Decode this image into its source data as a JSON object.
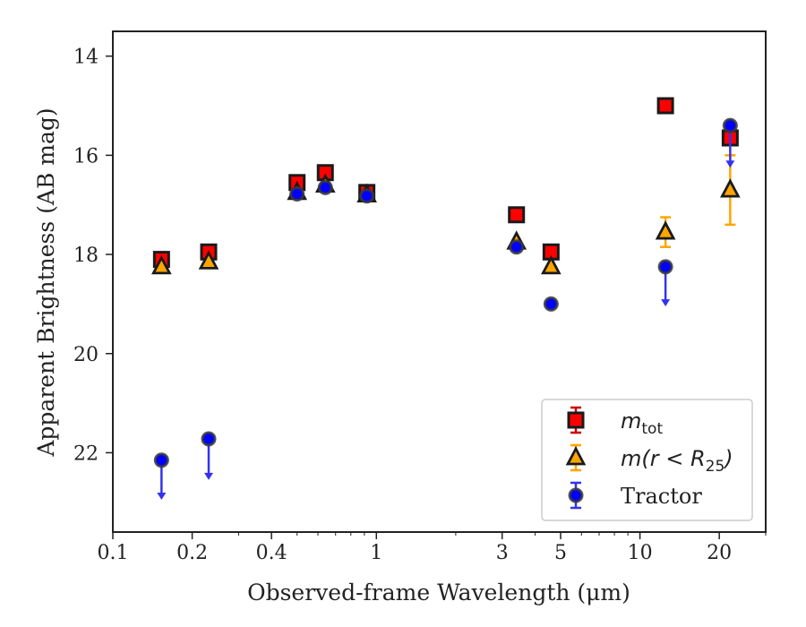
{
  "chart_data": {
    "type": "scatter",
    "xlabel": "Observed-frame Wavelength (μm)",
    "ylabel": "Apparent Brightness (AB mag)",
    "x_scale": "log",
    "xlim": [
      0.1,
      30
    ],
    "ylim": [
      23.6,
      13.5
    ],
    "y_inverted": true,
    "x_ticks": [
      0.1,
      0.2,
      0.4,
      1,
      3,
      5,
      10,
      20
    ],
    "x_tick_labels": [
      "0.1",
      "0.2",
      "0.4",
      "1",
      "3",
      "5",
      "10",
      "20"
    ],
    "y_ticks": [
      14,
      16,
      18,
      20,
      22
    ],
    "y_tick_labels": [
      "14",
      "16",
      "18",
      "20",
      "22"
    ],
    "grid": false,
    "legend_position": "lower-right",
    "series": [
      {
        "name": "m_tot",
        "marker": "square",
        "color": "#ff0000",
        "edge_color": "#1a1a1a",
        "error_color": "#cc0000",
        "points": [
          {
            "x": 0.153,
            "y": 18.1
          },
          {
            "x": 0.231,
            "y": 17.95
          },
          {
            "x": 0.5,
            "y": 16.55
          },
          {
            "x": 0.64,
            "y": 16.35
          },
          {
            "x": 0.92,
            "y": 16.75
          },
          {
            "x": 3.4,
            "y": 17.2
          },
          {
            "x": 4.6,
            "y": 17.95
          },
          {
            "x": 12.5,
            "y": 15.0
          },
          {
            "x": 22.0,
            "y": 15.65
          }
        ]
      },
      {
        "name": "m(r < R25)",
        "marker": "triangle",
        "color": "#ffa500",
        "edge_color": "#1a1a1a",
        "error_color": "#ffa500",
        "points": [
          {
            "x": 0.153,
            "y": 18.25
          },
          {
            "x": 0.231,
            "y": 18.15
          },
          {
            "x": 0.5,
            "y": 16.75
          },
          {
            "x": 0.64,
            "y": 16.6
          },
          {
            "x": 0.92,
            "y": 16.8
          },
          {
            "x": 3.4,
            "y": 17.75
          },
          {
            "x": 4.6,
            "y": 18.25
          },
          {
            "x": 12.5,
            "y": 17.55,
            "err_lo": 0.3,
            "err_hi": 0.3
          },
          {
            "x": 22.0,
            "y": 16.7,
            "err_lo": 0.7,
            "err_hi": 0.7
          }
        ]
      },
      {
        "name": "Tractor",
        "marker": "circle",
        "color": "#0000ff",
        "edge_color": "#3a3a3a",
        "error_color": "#3333ee",
        "points": [
          {
            "x": 0.153,
            "y": 22.15,
            "upper_limit": true,
            "arrow_to": 22.95
          },
          {
            "x": 0.231,
            "y": 21.72,
            "upper_limit": true,
            "arrow_to": 22.55
          },
          {
            "x": 0.5,
            "y": 16.78
          },
          {
            "x": 0.64,
            "y": 16.65
          },
          {
            "x": 0.92,
            "y": 16.82
          },
          {
            "x": 3.4,
            "y": 17.85
          },
          {
            "x": 4.6,
            "y": 19.0
          },
          {
            "x": 12.5,
            "y": 18.25,
            "upper_limit": true,
            "arrow_to": 19.05
          },
          {
            "x": 22.0,
            "y": 15.4,
            "upper_limit": true,
            "arrow_to": 16.25
          }
        ]
      }
    ]
  },
  "legend": {
    "items": [
      {
        "label_main": "m",
        "label_sub": "tot",
        "label_rest": ""
      },
      {
        "label_main": "m(r < R",
        "label_sub": "25",
        "label_rest": ")"
      },
      {
        "label_main": "Tractor",
        "label_sub": "",
        "label_rest": ""
      }
    ]
  }
}
